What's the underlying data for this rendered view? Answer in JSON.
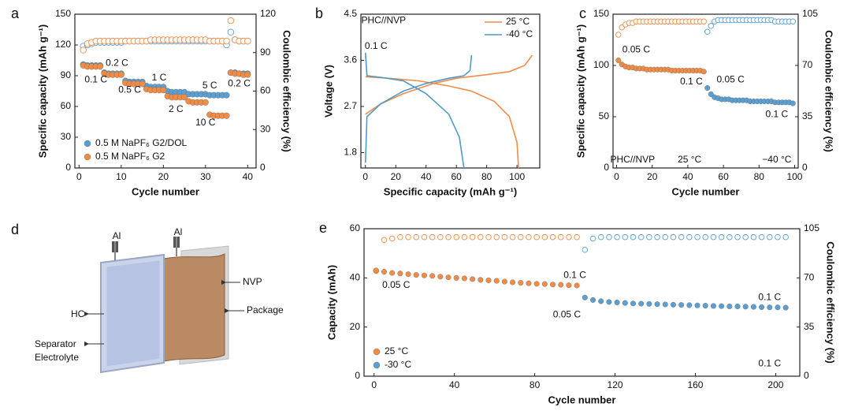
{
  "chart_data": [
    {
      "type": "scatter",
      "panel_label": "a",
      "xlabel": "Cycle number",
      "ylabel": "Specific capacity (mAh g⁻¹)",
      "y2label": "Coulombic efficiency (%)",
      "xlim": [
        -1,
        42
      ],
      "xticks": [
        0,
        10,
        20,
        30,
        40
      ],
      "ylim": [
        0,
        150
      ],
      "yticks": [
        0,
        30,
        60,
        90,
        120,
        150
      ],
      "y2lim": [
        0,
        120
      ],
      "y2ticks": [
        0,
        30,
        60,
        90,
        120
      ],
      "legend": "lower left",
      "x": [
        1,
        2,
        3,
        4,
        5,
        6,
        7,
        8,
        9,
        10,
        11,
        12,
        13,
        14,
        15,
        16,
        17,
        18,
        19,
        20,
        21,
        22,
        23,
        24,
        25,
        26,
        27,
        28,
        29,
        30,
        31,
        32,
        33,
        34,
        35,
        36,
        37,
        38,
        39,
        40
      ],
      "series": [
        {
          "name": "0.5 M NaPF₆ G2/DOL",
          "color": "#5a9fd4",
          "marker": "filled",
          "values": [
            101,
            100,
            100,
            100,
            100,
            93,
            92,
            92,
            92,
            92,
            85,
            84,
            84,
            84,
            84,
            80,
            79,
            79,
            79,
            79,
            75,
            74,
            74,
            74,
            74,
            72,
            72,
            72,
            72,
            72,
            71,
            71,
            71,
            71,
            71,
            93,
            93,
            92,
            92,
            92
          ]
        },
        {
          "name": "0.5 M NaPF₆ G2",
          "color": "#f28c45",
          "marker": "filled",
          "values": [
            100,
            99,
            99,
            99,
            99,
            92,
            91,
            91,
            91,
            91,
            83,
            82,
            82,
            82,
            82,
            77,
            76,
            76,
            76,
            76,
            70,
            69,
            69,
            69,
            69,
            65,
            64,
            64,
            64,
            64,
            52,
            51,
            51,
            51,
            51,
            93,
            92,
            92,
            91,
            91
          ]
        },
        {
          "color": "#5a9fd4",
          "marker": "hollow",
          "axis": "y2",
          "values": [
            95,
            96,
            97,
            98,
            98,
            98,
            98,
            98,
            98,
            98,
            99,
            99,
            99,
            99,
            99,
            99,
            99,
            99,
            99,
            99,
            99,
            99,
            99,
            99,
            99,
            99,
            99,
            99,
            99,
            99,
            99,
            99,
            99,
            99,
            96,
            106,
            100,
            99,
            99,
            99
          ]
        },
        {
          "color": "#f28c45",
          "marker": "hollow",
          "axis": "y2",
          "values": [
            92,
            97,
            98,
            99,
            99,
            99,
            99,
            99,
            99,
            99,
            99,
            99,
            99,
            99,
            99,
            99,
            100,
            100,
            100,
            100,
            100,
            100,
            100,
            100,
            100,
            100,
            100,
            100,
            100,
            100,
            99,
            99,
            99,
            99,
            99,
            115,
            100,
            99,
            99,
            99
          ]
        }
      ],
      "annotations": [
        "0.1 C",
        "0.2 C",
        "0.5 C",
        "1 C",
        "2 C",
        "5 C",
        "10 C",
        "0.2 C"
      ]
    },
    {
      "type": "line",
      "panel_label": "b",
      "xlabel": "Specific capacity (mAh g⁻¹)",
      "ylabel": "Voltage (V)",
      "xlim": [
        -3,
        115
      ],
      "xticks": [
        0,
        20,
        40,
        60,
        80,
        100
      ],
      "ylim": [
        1.5,
        4.5
      ],
      "yticks": [
        1.8,
        2.7,
        3.6,
        4.5
      ],
      "legend": "upper right",
      "series": [
        {
          "name": "25 °C",
          "color": "#f28c45",
          "x": [
            0,
            10,
            25,
            45,
            60,
            80,
            95,
            105,
            110,
            null,
            0,
            15,
            35,
            55,
            70,
            85,
            95,
            100,
            101
          ],
          "values": [
            2.55,
            2.75,
            2.95,
            3.15,
            3.25,
            3.32,
            3.38,
            3.5,
            3.7,
            null,
            3.28,
            3.25,
            3.2,
            3.1,
            3.0,
            2.8,
            2.5,
            2.0,
            1.5
          ]
        },
        {
          "name": "-40 °C",
          "color": "#4f9ac9",
          "x": [
            0,
            1,
            10,
            25,
            40,
            55,
            65,
            69,
            70,
            null,
            0,
            1,
            10,
            25,
            40,
            55,
            62,
            65
          ],
          "values": [
            1.6,
            2.5,
            2.75,
            3.0,
            3.15,
            3.25,
            3.3,
            3.4,
            3.7,
            null,
            3.75,
            3.3,
            3.27,
            3.2,
            2.95,
            2.55,
            2.1,
            1.5
          ]
        }
      ],
      "annotations": [
        "PHC//NVP",
        "0.1 C"
      ]
    },
    {
      "type": "scatter",
      "panel_label": "c",
      "xlabel": "Cycle number",
      "ylabel": "Specific capacity (mAh g⁻¹)",
      "y2label": "Coulombic efficiency (%)",
      "xlim": [
        -2,
        102
      ],
      "xticks": [
        0,
        20,
        40,
        60,
        80,
        100
      ],
      "ylim": [
        0,
        150
      ],
      "yticks": [
        0,
        50,
        100,
        150
      ],
      "y2lim": [
        0,
        105
      ],
      "y2ticks": [
        0,
        35,
        70,
        105
      ],
      "series": [
        {
          "color": "#f28c45",
          "marker": "filled",
          "x": [
            1,
            3,
            5,
            7,
            9,
            11,
            13,
            15,
            17,
            19,
            21,
            23,
            25,
            27,
            29,
            31,
            33,
            35,
            37,
            39,
            41,
            43,
            45,
            47,
            49
          ],
          "values": [
            105,
            101,
            99,
            98,
            98,
            97,
            97,
            97,
            96,
            96,
            96,
            96,
            96,
            96,
            96,
            95,
            95,
            95,
            95,
            95,
            95,
            95,
            95,
            95,
            94
          ]
        },
        {
          "color": "#f28c45",
          "marker": "hollow",
          "axis": "y2",
          "x": [
            1,
            3,
            5,
            7,
            9,
            11,
            13,
            15,
            17,
            19,
            21,
            23,
            25,
            27,
            29,
            31,
            33,
            35,
            37,
            39,
            41,
            43,
            45,
            47,
            49
          ],
          "values": [
            91,
            96,
            98,
            99,
            99,
            100,
            100,
            100,
            100,
            100,
            100,
            100,
            100,
            100,
            100,
            100,
            100,
            100,
            100,
            100,
            100,
            100,
            100,
            100,
            100
          ]
        },
        {
          "color": "#5a9fd4",
          "marker": "filled",
          "x": [
            51,
            53,
            55,
            57,
            59,
            61,
            63,
            65,
            67,
            69,
            71,
            73,
            75,
            77,
            79,
            81,
            83,
            85,
            87,
            89,
            91,
            93,
            95,
            97,
            99
          ],
          "values": [
            78,
            72,
            69,
            68,
            67,
            67,
            67,
            66,
            66,
            66,
            66,
            66,
            65,
            65,
            65,
            65,
            65,
            65,
            65,
            64,
            64,
            64,
            64,
            64,
            63
          ]
        },
        {
          "color": "#5a9fd4",
          "marker": "hollow",
          "axis": "y2",
          "x": [
            51,
            53,
            55,
            57,
            59,
            61,
            63,
            65,
            67,
            69,
            71,
            73,
            75,
            77,
            79,
            81,
            83,
            85,
            87,
            89,
            91,
            93,
            95,
            97,
            99
          ],
          "values": [
            93,
            97,
            100,
            101,
            101,
            101,
            101,
            101,
            101,
            101,
            101,
            101,
            101,
            101,
            101,
            101,
            101,
            101,
            101,
            100,
            100,
            100,
            100,
            100,
            100
          ]
        }
      ],
      "annotations": [
        "0.05 C",
        "0.1 C",
        "0.05 C",
        "0.1 C",
        "PHC//NVP",
        "25 °C",
        "−40 °C"
      ]
    },
    {
      "type": "scatter",
      "panel_label": "e",
      "xlabel": "Cycle number",
      "ylabel": "Capacity (mAh)",
      "y2label": "Coulombic efficiency (%)",
      "xlim": [
        -5,
        212
      ],
      "xticks": [
        0,
        40,
        80,
        120,
        160,
        200
      ],
      "ylim": [
        0,
        60
      ],
      "yticks": [
        0,
        20,
        40,
        60
      ],
      "y2lim": [
        0,
        105
      ],
      "y2ticks": [
        0,
        35,
        70,
        105
      ],
      "legend": "lower left",
      "series": [
        {
          "name": "25 °C",
          "color": "#f28c45",
          "marker": "filled",
          "x": [
            1,
            5,
            9,
            13,
            17,
            21,
            25,
            29,
            33,
            37,
            41,
            45,
            49,
            53,
            57,
            61,
            65,
            69,
            73,
            77,
            81,
            85,
            89,
            93,
            97,
            101
          ],
          "values": [
            43,
            42.5,
            42,
            41.8,
            41.5,
            41.2,
            41,
            40.8,
            40.5,
            40.2,
            40,
            39.8,
            39.5,
            39.2,
            39,
            38.8,
            38.5,
            38.2,
            38,
            37.8,
            37.6,
            37.5,
            37.3,
            37.2,
            37,
            36.9
          ]
        },
        {
          "name": "-30 °C",
          "color": "#5a9fd4",
          "marker": "filled",
          "x": [
            105,
            109,
            113,
            117,
            121,
            125,
            129,
            133,
            137,
            141,
            145,
            149,
            153,
            157,
            161,
            165,
            169,
            173,
            177,
            181,
            185,
            189,
            193,
            197,
            201,
            205
          ],
          "values": [
            32,
            31,
            30.5,
            30.2,
            30,
            29.8,
            29.6,
            29.5,
            29.4,
            29.3,
            29.2,
            29.1,
            29,
            28.9,
            28.8,
            28.7,
            28.6,
            28.5,
            28.4,
            28.4,
            28.3,
            28.2,
            28.1,
            28,
            28,
            27.9
          ]
        },
        {
          "color": "#f28c45",
          "marker": "hollow",
          "axis": "y2",
          "x": [
            1,
            5,
            9,
            13,
            17,
            21,
            25,
            29,
            33,
            37,
            41,
            45,
            49,
            53,
            57,
            61,
            65,
            69,
            73,
            77,
            81,
            85,
            89,
            93,
            97,
            101
          ],
          "values": [
            75,
            97,
            98,
            99,
            99,
            99,
            99,
            99,
            99,
            99,
            99,
            99,
            99,
            99,
            99,
            99,
            99,
            99,
            99,
            99,
            99,
            99,
            99,
            99,
            99,
            99
          ]
        },
        {
          "color": "#5a9fd4",
          "marker": "hollow",
          "axis": "y2",
          "x": [
            105,
            109,
            113,
            117,
            121,
            125,
            129,
            133,
            137,
            141,
            145,
            149,
            153,
            157,
            161,
            165,
            169,
            173,
            177,
            181,
            185,
            189,
            193,
            197,
            201,
            205
          ],
          "values": [
            90,
            98,
            99,
            99,
            99,
            99,
            99,
            99,
            99,
            99,
            99,
            99,
            99,
            99,
            99,
            99,
            99,
            99,
            99,
            99,
            99,
            99,
            99,
            99,
            99,
            99
          ]
        }
      ],
      "annotations": [
        "0.05 C",
        "0.1 C",
        "0.05 C",
        "0.1 C",
        "0.1 C"
      ]
    }
  ],
  "diagram": {
    "panel_label": "d",
    "labels": [
      "Al",
      "Al",
      "NVP",
      "HC",
      "Package",
      "Separator",
      "Electrolyte"
    ]
  }
}
